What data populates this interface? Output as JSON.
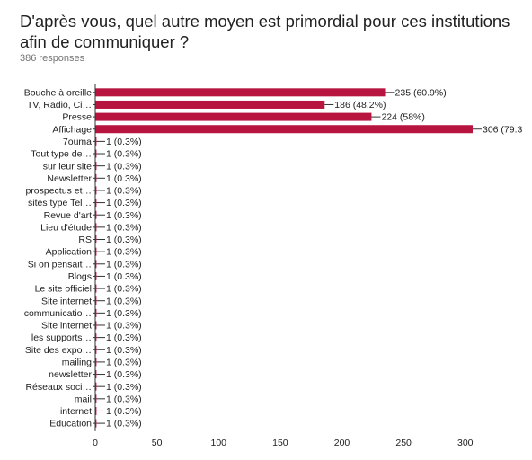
{
  "form": {
    "question": "D'après vous, quel autre moyen est primordial pour ces institutions afin de communiquer ?",
    "responses": "386 responses"
  },
  "colors": {
    "bar": "#b7143f",
    "axis": "#333333",
    "grid": "#e0e0e0",
    "text": "#212121",
    "muted": "#757575"
  },
  "chart_data": {
    "type": "bar",
    "orientation": "horizontal",
    "categories": [
      "Bouche à oreille",
      "TV, Radio, Ci…",
      "Presse",
      "Affichage",
      "7ouma",
      "Tout type de…",
      "sur leur site",
      "Newsletter",
      "prospectus et…",
      "sites type Tel…",
      "Revue d'art",
      "Lieu d'étude",
      "RS",
      "Application",
      "Si on pensait…",
      "Blogs",
      "Le site officiel",
      "Site internet",
      "communicatio…",
      "Site internet",
      "les supports…",
      "Site des expo…",
      "mailing",
      "newsletter",
      "Réseaux soci…",
      "mail",
      "internet",
      "Education"
    ],
    "values": [
      235,
      186,
      224,
      306,
      1,
      1,
      1,
      1,
      1,
      1,
      1,
      1,
      1,
      1,
      1,
      1,
      1,
      1,
      1,
      1,
      1,
      1,
      1,
      1,
      1,
      1,
      1,
      1
    ],
    "value_labels": [
      "235 (60.9%)",
      "186 (48.2%)",
      "224 (58%)",
      "306 (79.3",
      "1 (0.3%)",
      "1 (0.3%)",
      "1 (0.3%)",
      "1 (0.3%)",
      "1 (0.3%)",
      "1 (0.3%)",
      "1 (0.3%)",
      "1 (0.3%)",
      "1 (0.3%)",
      "1 (0.3%)",
      "1 (0.3%)",
      "1 (0.3%)",
      "1 (0.3%)",
      "1 (0.3%)",
      "1 (0.3%)",
      "1 (0.3%)",
      "1 (0.3%)",
      "1 (0.3%)",
      "1 (0.3%)",
      "1 (0.3%)",
      "1 (0.3%)",
      "1 (0.3%)",
      "1 (0.3%)",
      "1 (0.3%)"
    ],
    "xticks": [
      0,
      50,
      100,
      150,
      200,
      250,
      300
    ],
    "xlim": [
      0,
      312
    ],
    "grid": false,
    "legend": "none"
  }
}
